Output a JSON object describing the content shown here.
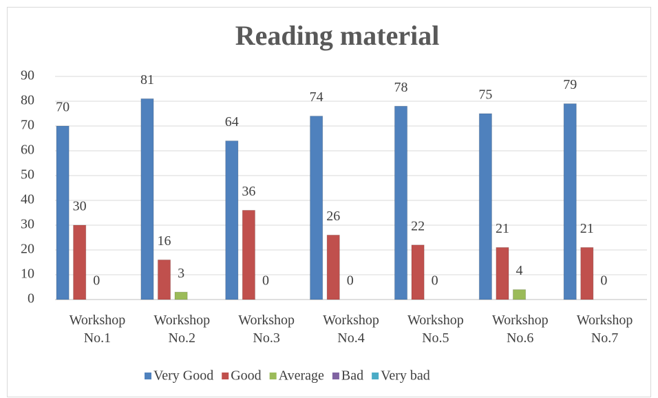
{
  "chart_data": {
    "type": "bar",
    "title": "Reading material",
    "categories": [
      "Workshop No.1",
      "Workshop No.2",
      "Workshop No.3",
      "Workshop No.4",
      "Workshop No.5",
      "Workshop No.6",
      "Workshop No.7"
    ],
    "series": [
      {
        "name": "Very Good",
        "color": "#4f81bd",
        "values": [
          70,
          81,
          64,
          74,
          78,
          75,
          79
        ]
      },
      {
        "name": "Good",
        "color": "#c0504d",
        "values": [
          30,
          16,
          36,
          26,
          22,
          21,
          21
        ]
      },
      {
        "name": "Average",
        "color": "#9bbb59",
        "values": [
          0,
          3,
          0,
          0,
          0,
          4,
          0
        ]
      },
      {
        "name": "Bad",
        "color": "#8064a2",
        "values": [
          null,
          null,
          null,
          null,
          null,
          null,
          null
        ]
      },
      {
        "name": "Very bad",
        "color": "#4bacc6",
        "values": [
          null,
          null,
          null,
          null,
          null,
          null,
          null
        ]
      }
    ],
    "ylim": [
      0,
      90
    ],
    "yticks": [
      0,
      10,
      20,
      30,
      40,
      50,
      60,
      70,
      80,
      90
    ],
    "grid": true,
    "legend": "bottom"
  }
}
